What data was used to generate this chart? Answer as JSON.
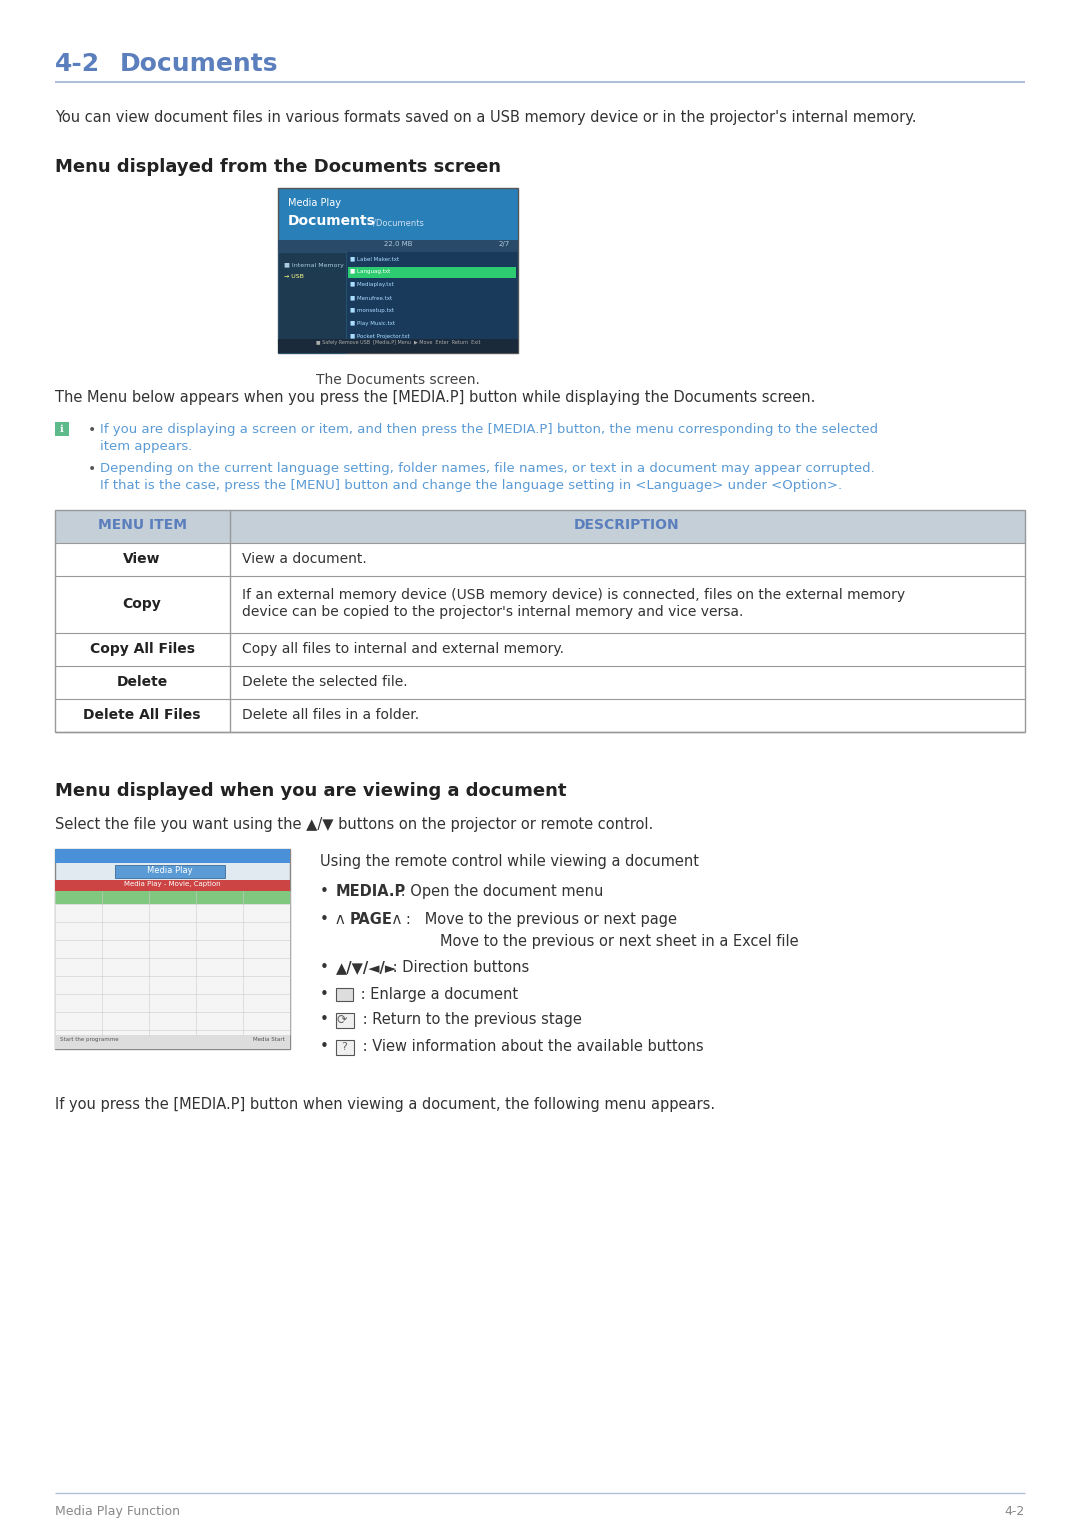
{
  "page_bg": "#ffffff",
  "title_color": "#5b7fbd",
  "divider_color": "#b0c0d8",
  "section1_heading": "Menu displayed from the Documents screen",
  "section2_heading": "Menu displayed when you are viewing a document",
  "intro_text": "You can view document files in various formats saved on a USB memory device or in the projector's internal memory.",
  "caption_text": "The Documents screen.",
  "note_text1_line1": "If you are displaying a screen or item, and then press the [MEDIA.P] button, the menu corresponding to the selected",
  "note_text1_line2": "item appears.",
  "note_text2_line1": "Depending on the current language setting, folder names, file names, or text in a document may appear corrupted.",
  "note_text2_line2": "If that is the case, press the [MENU] button and change the language setting in <Language> under <Option>.",
  "note_color": "#5b9bd5",
  "table_header_bg": "#c5cfd8",
  "table_header_text_color": "#5b7fbd",
  "table_border_color": "#999999",
  "table_rows": [
    {
      "item": "View",
      "desc": "View a document.",
      "multiline": false
    },
    {
      "item": "Copy",
      "desc1": "If an external memory device (USB memory device) is connected, files on the external memory",
      "desc2": "device can be copied to the projector's internal memory and vice versa.",
      "multiline": true
    },
    {
      "item": "Copy All Files",
      "desc": "Copy all files to internal and external memory.",
      "multiline": false
    },
    {
      "item": "Delete",
      "desc": "Delete the selected file.",
      "multiline": false
    },
    {
      "item": "Delete All Files",
      "desc": "Delete all files in a folder.",
      "multiline": false
    }
  ],
  "select_text": "Select the file you want using the up/down buttons on the projector or remote control.",
  "using_text": "Using the remote control while viewing a document",
  "footer_text_left": "Media Play Function",
  "footer_text_right": "4-2",
  "final_text": "If you press the [MEDIA.P] button when viewing a document, the following menu appears.",
  "file_names": [
    "Label Maker.txt",
    "Languag.txt",
    "Mediaplay.txt",
    "Menufree.txt",
    "monsetup.txt",
    "Play Music.txt",
    "Pocket Projector.txt"
  ]
}
